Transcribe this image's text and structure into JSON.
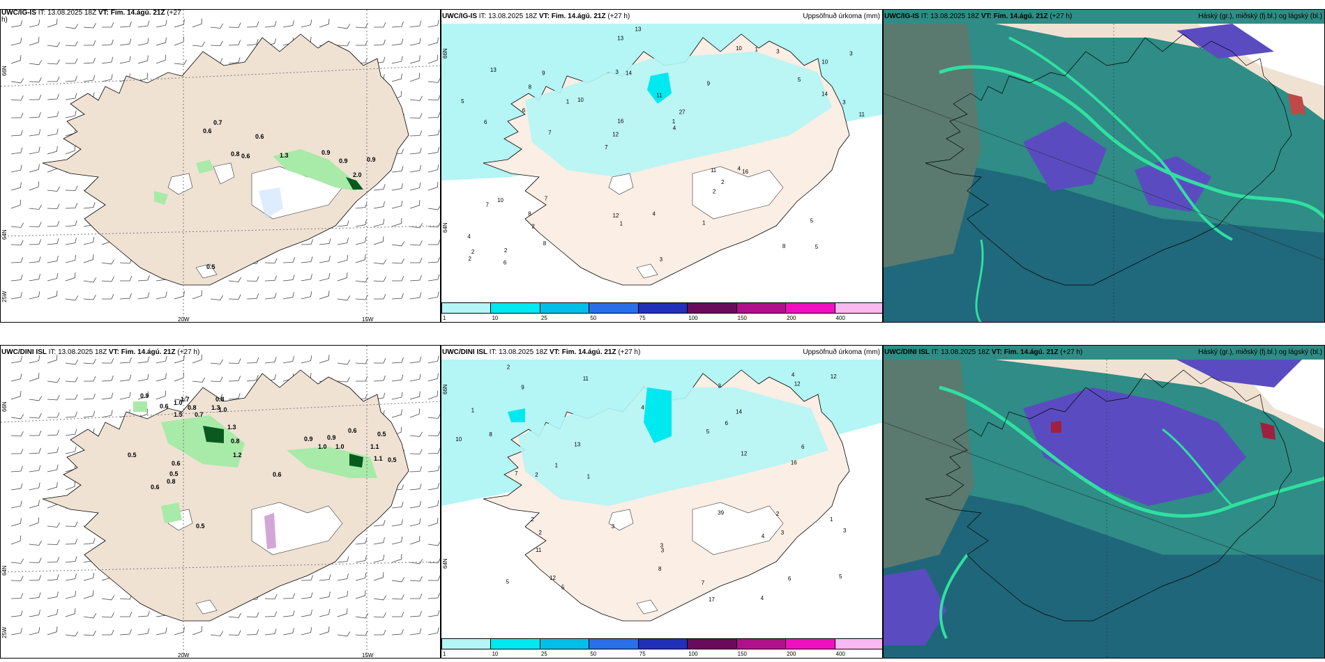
{
  "top_row": {
    "wind": {
      "model": "UWC/IG-IS",
      "it": "IT: 13.08.2025 18Z",
      "vt": "VT: Fim. 14.ágú. 21Z",
      "lead": "(+27",
      "lead2": "h)",
      "labels": [
        "0.7",
        "0.6",
        "0.6",
        "0.8",
        "0.6",
        "1.3",
        "0.9",
        "0.9",
        "0.9",
        "2.0",
        "0.5"
      ],
      "lon_labels": [
        "20W",
        "15W"
      ],
      "lat_labels": [
        "66N",
        "64N",
        "25W"
      ]
    },
    "precip": {
      "model": "UWC/IG-IS",
      "it": "IT: 13.08.2025 18Z",
      "vt": "VT: Fim. 14.ágú. 21Z",
      "lead": "(+27 h)",
      "field": "Uppsöfnuð úrkoma (mm)",
      "values": [
        "5",
        "6",
        "10",
        "7",
        "9",
        "2",
        "3",
        "11",
        "10",
        "10",
        "4",
        "2",
        "14",
        "27",
        "16",
        "13",
        "13",
        "11",
        "11",
        "14",
        "12",
        "12",
        "16",
        "9",
        "10",
        "7",
        "8",
        "5",
        "4",
        "3",
        "1",
        "6",
        "2",
        "8",
        "3",
        "1",
        "2",
        "1",
        "4",
        "7",
        "5",
        "3",
        "2",
        "1",
        "8",
        "6",
        "2",
        "4",
        "3",
        "13",
        "7",
        "5",
        "8",
        "1"
      ],
      "lat_labels": [
        "66N",
        "64N"
      ]
    },
    "cloud": {
      "model": "UWC/IG-IS",
      "it": "IT: 13.08.2025 18Z",
      "vt": "VT: Fim. 14.ágú. 21Z",
      "lead": "(+27 h)",
      "field": "Háský (gr.), miðský (fj.bl.) og lágský (bl.)"
    }
  },
  "bottom_row": {
    "wind": {
      "model": "UWC/DINI ISL",
      "it": "IT: 13.08.2025 18Z",
      "vt": "VT: Fim. 14.ágú. 21Z",
      "lead": "(+27 h)",
      "labels": [
        "0.9",
        "0.6",
        "1.0",
        "1.7",
        "0.8",
        "1.3",
        "0.7",
        "1.0",
        "0.8",
        "1.5",
        "1.3",
        "0.8",
        "1.2",
        "0.9",
        "0.9",
        "1.0",
        "1.0",
        "0.6",
        "0.5",
        "1.1",
        "1.1",
        "0.5",
        "0.5",
        "0.6",
        "0.5",
        "0.8",
        "0.6",
        "0.6",
        "0.5"
      ],
      "lon_labels": [
        "20W",
        "15W"
      ],
      "lat_labels": [
        "66N",
        "64N",
        "25W"
      ]
    },
    "precip": {
      "model": "UWC/DINI ISL",
      "it": "IT: 13.08.2025 18Z",
      "vt": "VT: Fim. 14.ágú. 21Z",
      "lead": "(+27 h)",
      "field": "Uppsöfnuð úrkoma (mm)",
      "values": [
        "1",
        "4",
        "3",
        "5",
        "3",
        "13",
        "11",
        "14",
        "17",
        "16",
        "39",
        "12",
        "10",
        "12",
        "5",
        "9",
        "11",
        "12",
        "3",
        "4",
        "8",
        "2",
        "6",
        "7",
        "12",
        "5",
        "4",
        "3",
        "2",
        "1",
        "8",
        "6",
        "5",
        "7",
        "3",
        "2",
        "1",
        "4",
        "1",
        "2",
        "3",
        "6",
        "2"
      ],
      "lat_labels": [
        "66N",
        "64N"
      ]
    },
    "cloud": {
      "model": "UWC/DINI ISL",
      "it": "IT: 13.08.2025 18Z",
      "vt": "VT: Fim. 14.ágú. 21Z",
      "lead": "(+27 h)",
      "field": "Háský (gr.), miðský (fj.bl.) og lágský (bl.)"
    }
  },
  "colorbar": {
    "labels": [
      "1",
      "10",
      "25",
      "50",
      "75",
      "100",
      "150",
      "200",
      "400"
    ],
    "colors": [
      "#b4f5f5",
      "#00e8f0",
      "#00bfe8",
      "#2a6ee8",
      "#2030b8",
      "#6a0a5a",
      "#b0108a",
      "#f010c0",
      "#f8b8f0"
    ]
  },
  "colors": {
    "land": "#efe2d3",
    "precip_land": "#fbeee4",
    "precip_cyan": "#b4f5f5",
    "precip_cyan2": "#00e8f0",
    "wind_green": "#a8eaa8",
    "wind_dark": "#0a5a20",
    "cloud_teal": "#2f8c86",
    "cloud_dark": "#1d5f78",
    "cloud_purple": "#5a4cc0",
    "cloud_green": "#30e0a0"
  }
}
